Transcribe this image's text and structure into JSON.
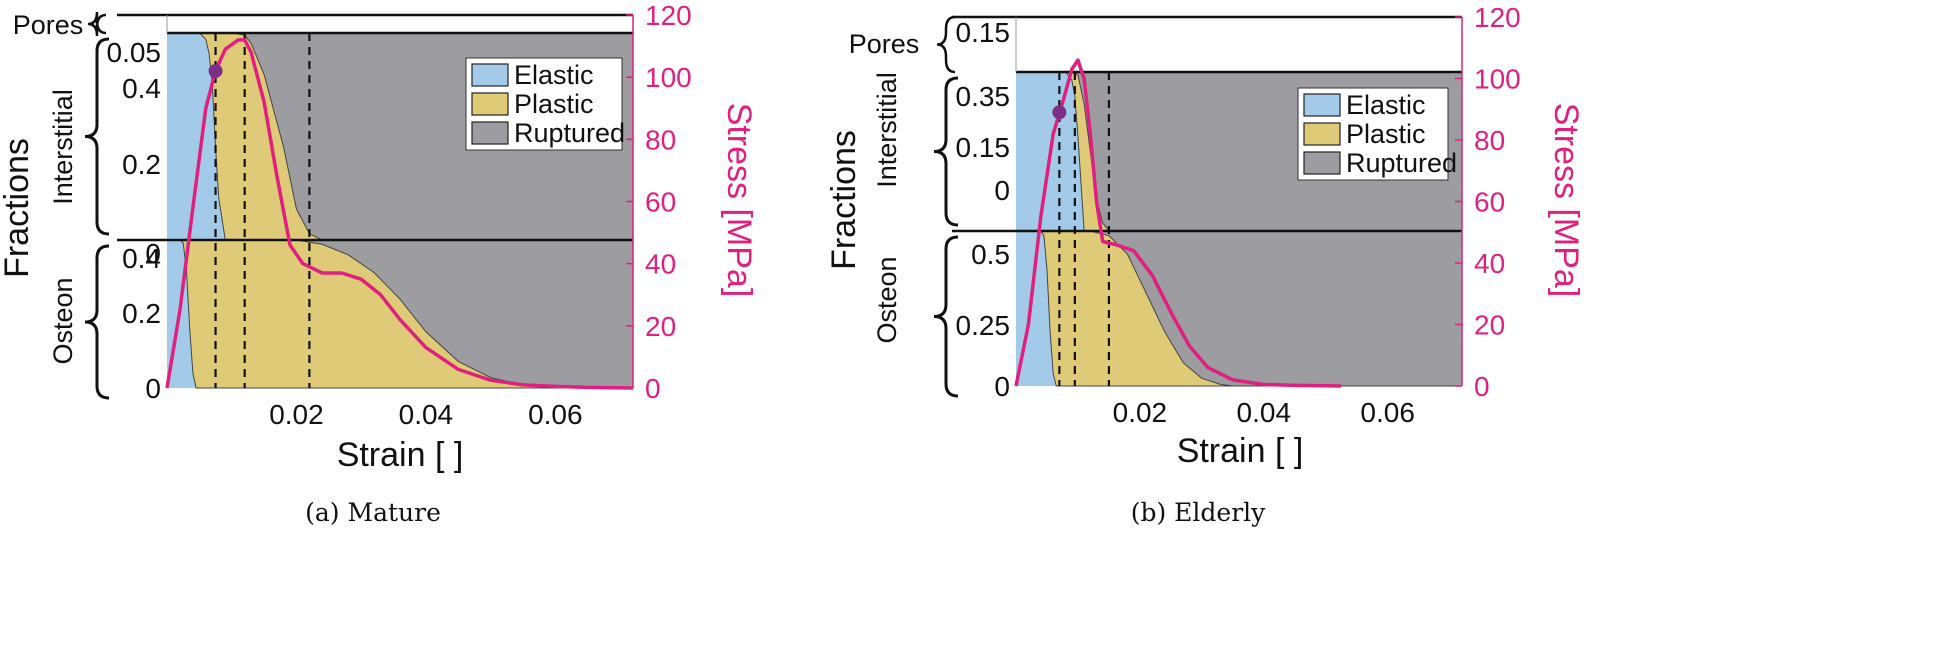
{
  "chart_data": [
    {
      "type": "area",
      "caption": "(a) Mature",
      "xlabel": "Strain [ ]",
      "ylabel_left": "Fractions",
      "ylabel_right": "Stress [MPa]",
      "xlim": [
        0,
        0.072
      ],
      "x_ticks": [
        "0.02",
        "0.04",
        "0.06"
      ],
      "right_ylim": [
        0,
        120
      ],
      "right_ticks": [
        "0",
        "20",
        "40",
        "60",
        "80",
        "100",
        "120"
      ],
      "regions": {
        "pores": {
          "label": "Pores",
          "fraction": 0.05,
          "ticks": [
            "0.05"
          ]
        },
        "interstitial": {
          "label": "Interstitial",
          "ticks": [
            "0",
            "0.2",
            "0.4"
          ]
        },
        "osteon": {
          "label": "Osteon",
          "ticks": [
            "0",
            "0.2",
            "0.4"
          ]
        }
      },
      "legend": {
        "position": "top-right",
        "entries": [
          "Elastic",
          "Plastic",
          "Ruptured"
        ]
      },
      "colors": {
        "elastic": "#a3cbe9",
        "plastic": "#dfcb77",
        "ruptured": "#9c9ca1",
        "stress": "#e0207e",
        "marker": "#7b2f86"
      },
      "interstitial_elastic": {
        "x": [
          0,
          0.005,
          0.006,
          0.0065,
          0.007,
          0.0075,
          0.008,
          0.009,
          0.072
        ],
        "y": [
          1,
          1,
          0.97,
          0.9,
          0.75,
          0.45,
          0.2,
          0,
          0
        ]
      },
      "interstitial_intact": {
        "x": [
          0,
          0.006,
          0.008,
          0.01,
          0.012,
          0.013,
          0.015,
          0.018,
          0.02,
          0.022,
          0.024,
          0.072
        ],
        "y": [
          1,
          1,
          1,
          1,
          0.99,
          0.95,
          0.8,
          0.45,
          0.15,
          0.03,
          0,
          0
        ]
      },
      "osteon_elastic": {
        "x": [
          0,
          0.002,
          0.0025,
          0.003,
          0.0035,
          0.004,
          0.0045,
          0.072
        ],
        "y": [
          1,
          1,
          0.98,
          0.8,
          0.4,
          0.1,
          0,
          0
        ]
      },
      "osteon_intact": {
        "x": [
          0,
          0.02,
          0.024,
          0.028,
          0.032,
          0.036,
          0.04,
          0.045,
          0.05,
          0.055,
          0.06,
          0.072
        ],
        "y": [
          1,
          1,
          0.97,
          0.9,
          0.78,
          0.6,
          0.38,
          0.18,
          0.07,
          0.02,
          0,
          0
        ]
      },
      "stress": {
        "x": [
          0,
          0.002,
          0.004,
          0.006,
          0.0075,
          0.009,
          0.011,
          0.012,
          0.013,
          0.015,
          0.017,
          0.019,
          0.021,
          0.024,
          0.027,
          0.03,
          0.033,
          0.036,
          0.04,
          0.045,
          0.05,
          0.055,
          0.06,
          0.065,
          0.072
        ],
        "y": [
          0,
          25,
          58,
          90,
          102,
          109,
          112,
          112,
          108,
          92,
          68,
          46,
          40,
          37,
          37,
          35,
          30,
          22,
          13,
          6,
          2.5,
          1,
          0.5,
          0.2,
          0
        ]
      },
      "marker": {
        "x": 0.0075,
        "y": 102
      },
      "dashed_lines_x": [
        0.0075,
        0.012,
        0.022
      ]
    },
    {
      "type": "area",
      "caption": "(b) Elderly",
      "xlabel": "Strain [ ]",
      "ylabel_left": "Fractions",
      "ylabel_right": "Stress [MPa]",
      "xlim": [
        0,
        0.072
      ],
      "x_ticks": [
        "0.02",
        "0.04",
        "0.06"
      ],
      "right_ylim": [
        0,
        120
      ],
      "right_ticks": [
        "0",
        "20",
        "40",
        "60",
        "80",
        "100",
        "120"
      ],
      "regions": {
        "pores": {
          "label": "Pores",
          "fraction": 0.15,
          "ticks": [
            "0.15"
          ]
        },
        "interstitial": {
          "label": "Interstitial",
          "ticks": [
            "0",
            "0.15",
            "0.35"
          ]
        },
        "osteon": {
          "label": "Osteon",
          "ticks": [
            "0",
            "0.25",
            "0.5"
          ]
        }
      },
      "legend": {
        "position": "top-right",
        "entries": [
          "Elastic",
          "Plastic",
          "Ruptured"
        ]
      },
      "colors": {
        "elastic": "#a3cbe9",
        "plastic": "#dfcb77",
        "ruptured": "#9c9ca1",
        "stress": "#e0207e",
        "marker": "#7b2f86"
      },
      "interstitial_elastic": {
        "x": [
          0,
          0.008,
          0.009,
          0.0095,
          0.01,
          0.0105,
          0.011,
          0.072
        ],
        "y": [
          1,
          1,
          0.95,
          0.85,
          0.6,
          0.3,
          0,
          0
        ]
      },
      "interstitial_intact": {
        "x": [
          0,
          0.009,
          0.01,
          0.011,
          0.012,
          0.013,
          0.014,
          0.015,
          0.072
        ],
        "y": [
          1,
          1,
          0.98,
          0.8,
          0.5,
          0.2,
          0.05,
          0,
          0
        ]
      },
      "osteon_elastic": {
        "x": [
          0,
          0.004,
          0.0045,
          0.005,
          0.0055,
          0.006,
          0.0065,
          0.072
        ],
        "y": [
          1,
          1,
          0.97,
          0.75,
          0.35,
          0.08,
          0,
          0
        ]
      },
      "osteon_intact": {
        "x": [
          0,
          0.012,
          0.015,
          0.018,
          0.021,
          0.024,
          0.027,
          0.03,
          0.033,
          0.035,
          0.072
        ],
        "y": [
          1,
          1,
          0.97,
          0.85,
          0.6,
          0.35,
          0.15,
          0.05,
          0.01,
          0,
          0
        ]
      },
      "stress": {
        "x": [
          0,
          0.002,
          0.004,
          0.006,
          0.0075,
          0.009,
          0.01,
          0.011,
          0.012,
          0.013,
          0.014,
          0.016,
          0.019,
          0.022,
          0.025,
          0.028,
          0.031,
          0.035,
          0.04,
          0.045,
          0.05,
          0.0525
        ],
        "y": [
          0,
          20,
          55,
          82,
          92,
          103,
          106,
          100,
          82,
          60,
          47,
          46,
          44,
          36,
          24,
          13,
          6,
          2,
          0.5,
          0.2,
          0.1,
          0
        ]
      },
      "marker": {
        "x": 0.007,
        "y": 89
      },
      "dashed_lines_x": [
        0.007,
        0.0095,
        0.015
      ]
    }
  ]
}
